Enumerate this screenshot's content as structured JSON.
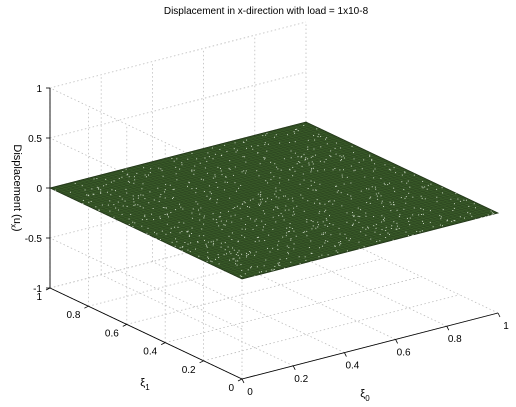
{
  "chart_data": {
    "type": "surface",
    "title": "Displacement in x-direction with load = 1x10-8",
    "xlabel_main": "ξ",
    "xlabel_sub": "0",
    "ylabel_main": "ξ",
    "ylabel_sub": "1",
    "zlabel_main": "Displacement (u",
    "zlabel_sub": "x",
    "zlabel_close": ")",
    "x_ticks": [
      "0",
      "0.2",
      "0.4",
      "0.6",
      "0.8",
      "1"
    ],
    "y_ticks": [
      "0",
      "0.2",
      "0.4",
      "0.6",
      "0.8",
      "1"
    ],
    "z_ticks": [
      "-1",
      "-0.5",
      "0",
      "0.5",
      "1"
    ],
    "x_range": [
      0,
      1
    ],
    "y_range": [
      0,
      1
    ],
    "z_range": [
      -1,
      1
    ],
    "surface": {
      "z_value": 0,
      "mesh": "dense",
      "color": "#2f4a22"
    },
    "grid": true,
    "colors": {
      "surface": "#2f4a22",
      "grid": "#bdbdbd",
      "axis": "#000000"
    }
  }
}
